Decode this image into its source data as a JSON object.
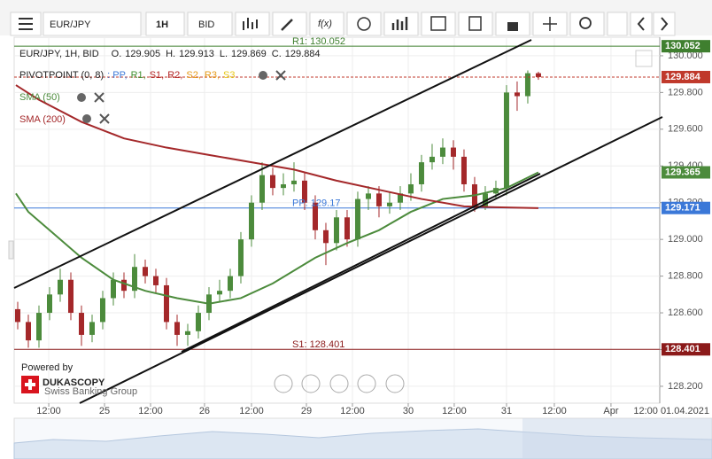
{
  "toolbar": {
    "symbol": "EUR/JPY",
    "period": "1H",
    "side": "BID",
    "fx": "f(x)"
  },
  "chart_data": {
    "type": "candlestick",
    "title": "EUR/JPY, 1H, BID",
    "ohlc_labels": [
      "O.",
      "H.",
      "L.",
      "C."
    ],
    "up_color": "#4c8b3c",
    "down_color": "#a4282a",
    "xlim": [
      -0.333,
      60.42
    ],
    "xticks": [
      {
        "value": 2.92,
        "label": "12:00"
      },
      {
        "value": 8.17,
        "label": "25"
      },
      {
        "value": 12.5,
        "label": "12:00"
      },
      {
        "value": 17.58,
        "label": "26"
      },
      {
        "value": 22,
        "label": "12:00"
      },
      {
        "value": 27.17,
        "label": "29"
      },
      {
        "value": 31.5,
        "label": "12:00"
      },
      {
        "value": 36.75,
        "label": "30"
      },
      {
        "value": 41.08,
        "label": "12:00"
      },
      {
        "value": 46,
        "label": "31"
      },
      {
        "value": 50.5,
        "label": "12:00"
      },
      {
        "value": 55.83,
        "label": "Apr"
      }
    ],
    "x_end_label": "12:00 01.04.2021",
    "ylim": [
      128.108,
      130.101
    ],
    "yticks": [
      {
        "value": 128.2,
        "label": "128.200"
      },
      {
        "value": 128.4,
        "label": "128.400"
      },
      {
        "value": 128.6,
        "label": "128.600"
      },
      {
        "value": 128.8,
        "label": "128.800"
      },
      {
        "value": 129,
        "label": "129.000"
      },
      {
        "value": 129.2,
        "label": "129.200"
      },
      {
        "value": 129.4,
        "label": "129.400"
      },
      {
        "value": 129.6,
        "label": "129.600"
      },
      {
        "value": 129.8,
        "label": "129.800"
      },
      {
        "value": 130,
        "label": "130.000"
      }
    ],
    "candles": [
      [
        128.62,
        128.66,
        128.51,
        128.55
      ],
      [
        128.55,
        128.59,
        128.41,
        128.45
      ],
      [
        128.45,
        128.64,
        128.41,
        128.6
      ],
      [
        128.6,
        128.74,
        128.56,
        128.7
      ],
      [
        128.7,
        128.84,
        128.66,
        128.78
      ],
      [
        128.78,
        128.82,
        128.56,
        128.6
      ],
      [
        128.6,
        128.64,
        128.42,
        128.48
      ],
      [
        128.48,
        128.59,
        128.44,
        128.55
      ],
      [
        128.55,
        128.72,
        128.51,
        128.68
      ],
      [
        128.68,
        128.82,
        128.64,
        128.78
      ],
      [
        128.78,
        128.82,
        128.68,
        128.72
      ],
      [
        128.72,
        128.92,
        128.68,
        128.85
      ],
      [
        128.85,
        128.89,
        128.76,
        128.8
      ],
      [
        128.8,
        128.84,
        128.71,
        128.75
      ],
      [
        128.75,
        128.79,
        128.51,
        128.55
      ],
      [
        128.55,
        128.59,
        128.42,
        128.48
      ],
      [
        128.48,
        128.54,
        128.42,
        128.5
      ],
      [
        128.5,
        128.64,
        128.46,
        128.6
      ],
      [
        128.6,
        128.74,
        128.56,
        128.7
      ],
      [
        128.7,
        128.78,
        128.66,
        128.72
      ],
      [
        128.72,
        128.84,
        128.68,
        128.8
      ],
      [
        128.8,
        129.04,
        128.76,
        129.0
      ],
      [
        129.0,
        129.24,
        128.96,
        129.2
      ],
      [
        129.2,
        129.42,
        129.16,
        129.35
      ],
      [
        129.35,
        129.39,
        129.24,
        129.28
      ],
      [
        129.28,
        129.36,
        129.24,
        129.3
      ],
      [
        129.3,
        129.42,
        129.26,
        129.32
      ],
      [
        129.32,
        129.36,
        129.16,
        129.2
      ],
      [
        129.2,
        129.24,
        129.0,
        129.05
      ],
      [
        129.05,
        129.09,
        128.86,
        128.98
      ],
      [
        128.98,
        129.16,
        128.94,
        129.12
      ],
      [
        129.12,
        129.16,
        128.96,
        129.0
      ],
      [
        129.0,
        129.26,
        128.96,
        129.22
      ],
      [
        129.22,
        129.29,
        129.16,
        129.25
      ],
      [
        129.25,
        129.29,
        129.12,
        129.18
      ],
      [
        129.18,
        129.26,
        129.14,
        129.2
      ],
      [
        129.2,
        129.29,
        129.16,
        129.25
      ],
      [
        129.25,
        129.36,
        129.21,
        129.3
      ],
      [
        129.3,
        129.46,
        129.26,
        129.42
      ],
      [
        129.42,
        129.52,
        129.38,
        129.45
      ],
      [
        129.45,
        129.55,
        129.41,
        129.5
      ],
      [
        129.5,
        129.54,
        129.38,
        129.45
      ],
      [
        129.45,
        129.49,
        129.26,
        129.3
      ],
      [
        129.3,
        129.34,
        129.15,
        129.18
      ],
      [
        129.18,
        129.29,
        129.16,
        129.25
      ],
      [
        129.25,
        129.32,
        129.22,
        129.28
      ],
      [
        129.28,
        129.84,
        129.24,
        129.8
      ],
      [
        129.8,
        129.86,
        129.7,
        129.78
      ],
      [
        129.78,
        129.92,
        129.74,
        129.905
      ],
      [
        129.905,
        129.913,
        129.869,
        129.884
      ]
    ],
    "indicator": {
      "name": "PIVOTPOINT (0, 8)",
      "parts": [
        {
          "label": ": PP,",
          "color": "#3b78d8"
        },
        {
          "label": "R1,",
          "color": "#3f8f2f"
        },
        {
          "label": "S1,",
          "color": "#b22222"
        },
        {
          "label": "R2,",
          "color": "#b22222"
        },
        {
          "label": "S2,",
          "color": "#e69a17"
        },
        {
          "label": "R3,",
          "color": "#e69a17"
        },
        {
          "label": "S3",
          "color": "#e6c817"
        }
      ]
    },
    "levels": [
      {
        "label": "R1: 130.052",
        "value": 130.052,
        "color": "#3f7f2f"
      },
      {
        "label": "PP: 129.17",
        "value": 129.171,
        "color": "#3b78d8"
      },
      {
        "label": "S1: 128.401",
        "value": 128.401,
        "color": "#8b1a1a"
      }
    ],
    "series": [
      {
        "name": "SMA (50)",
        "color": "#4c8b3c",
        "x": [
          -0.17,
          1,
          3,
          6,
          9,
          12,
          15,
          18,
          21,
          24,
          28,
          31,
          34,
          37,
          40,
          43,
          46,
          49
        ],
        "values": [
          129.25,
          129.15,
          129.05,
          128.9,
          128.78,
          128.72,
          128.68,
          128.65,
          128.68,
          128.76,
          128.9,
          128.98,
          129.05,
          129.15,
          129.22,
          129.24,
          129.28,
          129.365
        ]
      },
      {
        "name": "SMA (200)",
        "color": "#a4282a",
        "x": [
          -0.17,
          2,
          6,
          10,
          14,
          18,
          22,
          26,
          30,
          34,
          38,
          42,
          45,
          49
        ],
        "values": [
          129.84,
          129.76,
          129.64,
          129.55,
          129.5,
          129.46,
          129.42,
          129.38,
          129.32,
          129.27,
          129.22,
          129.18,
          129.175,
          129.17
        ]
      }
    ],
    "brand": {
      "powered": "Powered by",
      "name": "DUKASCOPY",
      "tagline": "Swiss Banking Group"
    }
  }
}
